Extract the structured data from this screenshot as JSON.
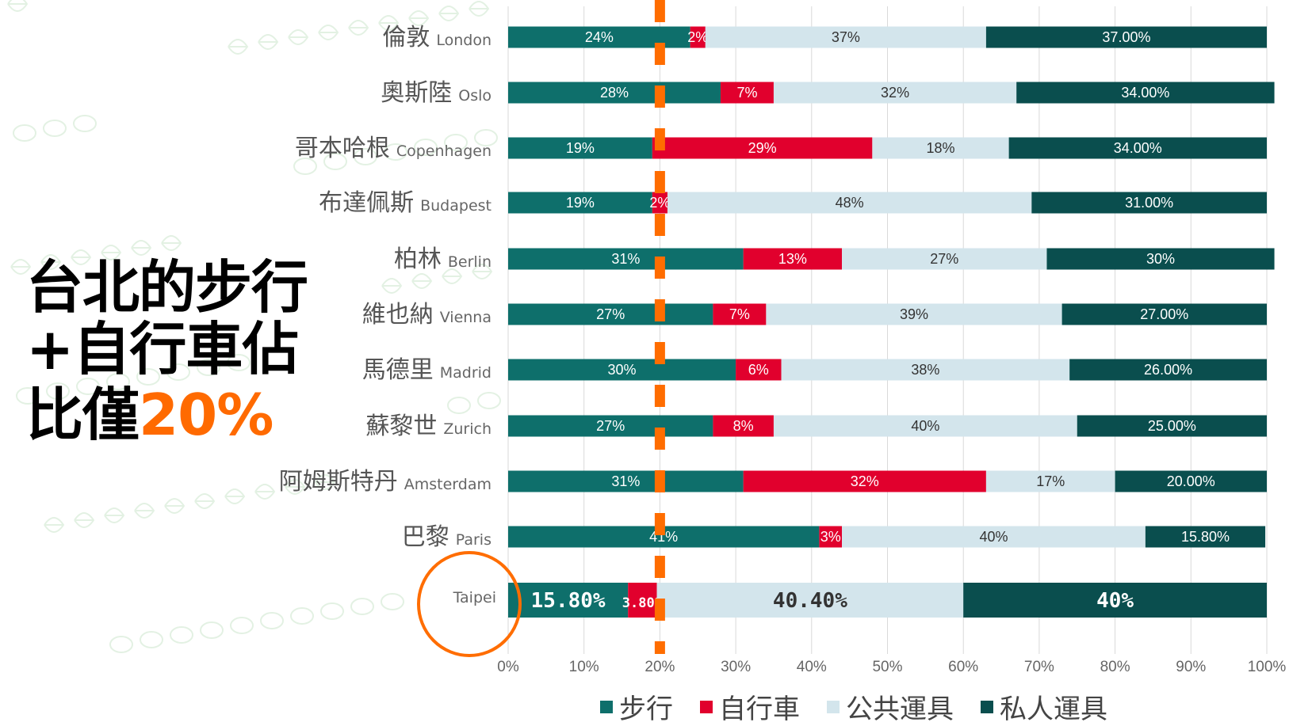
{
  "headline": {
    "line1": "台北的步行",
    "line2": "+自行車佔",
    "line3_prefix": "比僅",
    "line3_highlight": "20%"
  },
  "colors": {
    "walk": "#0e6f6b",
    "bike": "#e1002d",
    "public": "#d3e5ec",
    "private": "#0a4e4e",
    "highlight": "#ff6d00",
    "grid": "#d9d9d9"
  },
  "chart_data": {
    "type": "bar",
    "orientation": "horizontal-stacked-100",
    "xlim": [
      0,
      100
    ],
    "xticks": [
      "0%",
      "10%",
      "20%",
      "30%",
      "40%",
      "50%",
      "60%",
      "70%",
      "80%",
      "90%",
      "100%"
    ],
    "reference_line": {
      "value": 20,
      "style": "dashed",
      "color": "#ff6d00"
    },
    "legend": {
      "placement": "bottom",
      "entries": [
        "步行",
        "自行車",
        "公共運具",
        "私人運具"
      ]
    },
    "categories": [
      {
        "zh": "倫敦",
        "en": "London"
      },
      {
        "zh": "奧斯陸",
        "en": "Oslo"
      },
      {
        "zh": "哥本哈根",
        "en": "Copenhagen"
      },
      {
        "zh": "布達佩斯",
        "en": "Budapest"
      },
      {
        "zh": "柏林",
        "en": "Berlin"
      },
      {
        "zh": "維也納",
        "en": "Vienna"
      },
      {
        "zh": "馬德里",
        "en": "Madrid"
      },
      {
        "zh": "蘇黎世",
        "en": "Zurich"
      },
      {
        "zh": "阿姆斯特丹",
        "en": "Amsterdam"
      },
      {
        "zh": "巴黎",
        "en": "Paris"
      },
      {
        "zh": "",
        "en": "Taipei"
      }
    ],
    "series": [
      {
        "name": "步行",
        "values": [
          24,
          28,
          19,
          19,
          31,
          27,
          30,
          27,
          31,
          41,
          15.8
        ],
        "labels": [
          "24%",
          "28%",
          "19%",
          "19%",
          "31%",
          "27%",
          "30%",
          "27%",
          "31%",
          "41%",
          "15.80%"
        ]
      },
      {
        "name": "自行車",
        "values": [
          2,
          7,
          29,
          2,
          13,
          7,
          6,
          8,
          32,
          3,
          3.8
        ],
        "labels": [
          "2%",
          "7%",
          "29%",
          "2%",
          "13%",
          "7%",
          "6%",
          "8%",
          "32%",
          "3%",
          "3.80%"
        ]
      },
      {
        "name": "公共運具",
        "values": [
          37,
          32,
          18,
          48,
          27,
          39,
          38,
          40,
          17,
          40,
          40.4
        ],
        "labels": [
          "37%",
          "32%",
          "18%",
          "48%",
          "27%",
          "39%",
          "38%",
          "40%",
          "17%",
          "40%",
          "40.40%"
        ]
      },
      {
        "name": "私人運具",
        "values": [
          37,
          34,
          34,
          31,
          30,
          27,
          26,
          25,
          20,
          15.8,
          40
        ],
        "labels": [
          "37.00%",
          "34.00%",
          "34.00%",
          "31.00%",
          "30%",
          "27.00%",
          "26.00%",
          "25.00%",
          "20.00%",
          "15.80%",
          "40%"
        ]
      }
    ],
    "highlighted_category": "Taipei"
  }
}
